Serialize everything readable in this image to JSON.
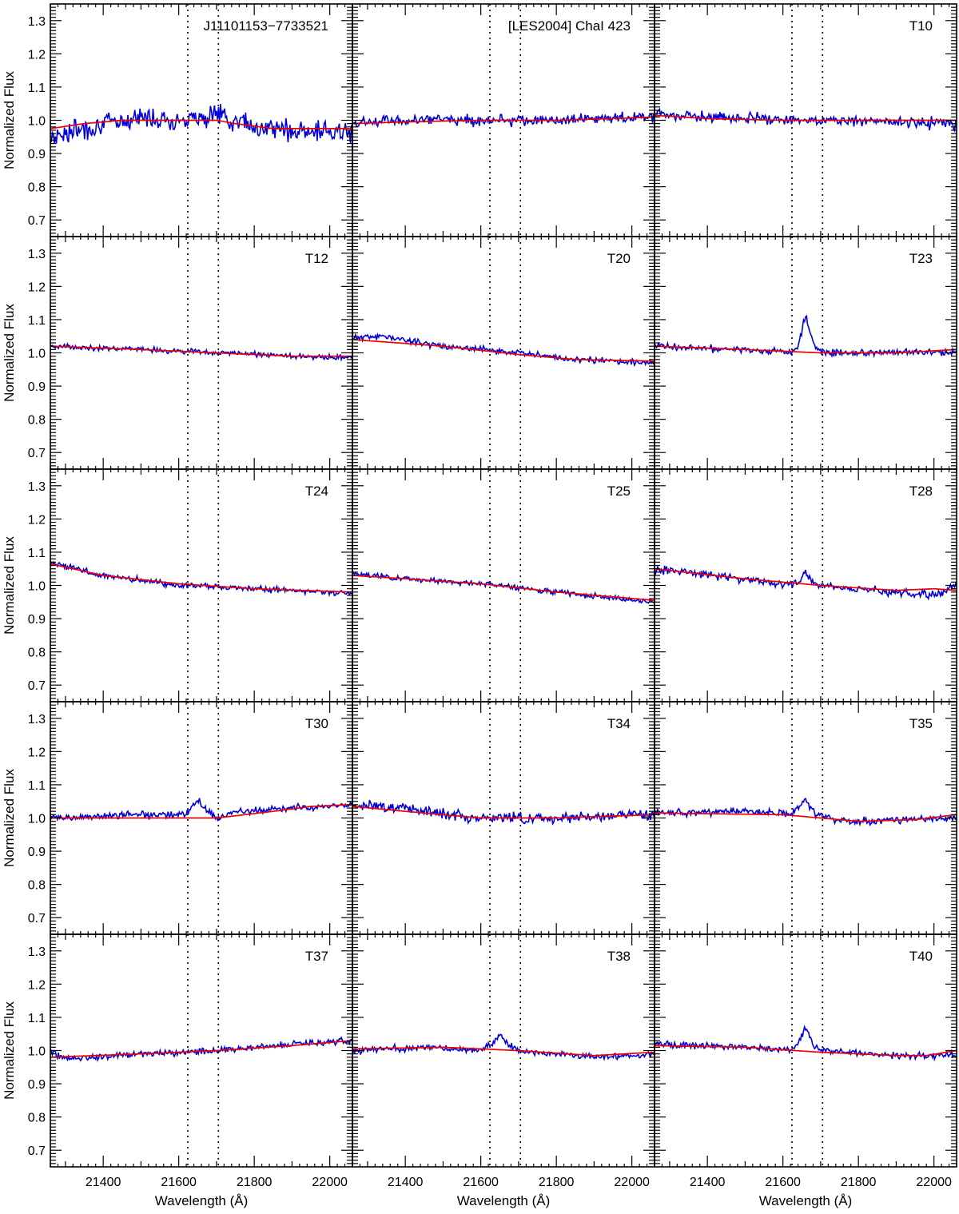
{
  "chart_data": {
    "type": "line",
    "layout": "grid 5 rows x 3 columns, shared axes",
    "xlabel": "Wavelength (Å)",
    "ylabel": "Normalized Flux",
    "xlim": [
      21260,
      22060
    ],
    "ylim": [
      0.65,
      1.35
    ],
    "xticks": [
      21400,
      21600,
      21800,
      22000
    ],
    "xtick_labels": [
      "21400",
      "21600",
      "21800",
      "22000"
    ],
    "yticks": [
      0.7,
      0.8,
      0.9,
      1.0,
      1.1,
      1.2,
      1.3
    ],
    "ytick_labels": [
      "0.7",
      "0.8",
      "0.9",
      "1.0",
      "1.1",
      "1.2",
      "1.3"
    ],
    "reference_lines_x": [
      21624,
      21705
    ],
    "grid": false,
    "colors": {
      "observed": "#0000dd",
      "model": "#ee0000",
      "axes": "#000000",
      "reference": "#000000"
    },
    "panels": [
      {
        "label": "J11101153−7733521",
        "observed_noise": 0.024,
        "observed": [
          [
            21260,
            0.95
          ],
          [
            21400,
            0.99
          ],
          [
            21500,
            1.01
          ],
          [
            21600,
            1.0
          ],
          [
            21700,
            1.02
          ],
          [
            21800,
            0.98
          ],
          [
            21900,
            0.97
          ],
          [
            22060,
            0.96
          ]
        ],
        "model": [
          [
            21260,
            0.975
          ],
          [
            21350,
            0.99
          ],
          [
            21450,
            1.0
          ],
          [
            21600,
            1.0
          ],
          [
            21700,
            1.0
          ],
          [
            21750,
            0.99
          ],
          [
            21850,
            0.975
          ],
          [
            22060,
            0.975
          ]
        ]
      },
      {
        "label": "[LES2004] ChaI 423",
        "observed_noise": 0.012,
        "observed": [
          [
            21260,
            0.99
          ],
          [
            21400,
            1.0
          ],
          [
            21600,
            1.0
          ],
          [
            21800,
            1.0
          ],
          [
            22060,
            1.01
          ]
        ],
        "model": [
          [
            21260,
            0.99
          ],
          [
            21400,
            0.995
          ],
          [
            21600,
            1.0
          ],
          [
            21800,
            1.0
          ],
          [
            21950,
            1.005
          ],
          [
            22060,
            1.01
          ]
        ]
      },
      {
        "label": "T10",
        "observed_noise": 0.013,
        "observed": [
          [
            21260,
            1.02
          ],
          [
            21400,
            1.01
          ],
          [
            21600,
            1.0
          ],
          [
            21800,
            1.0
          ],
          [
            22060,
            0.99
          ]
        ],
        "model": [
          [
            21260,
            1.015
          ],
          [
            21400,
            1.005
          ],
          [
            21600,
            1.0
          ],
          [
            21800,
            1.0
          ],
          [
            22060,
            1.0
          ]
        ]
      },
      {
        "label": "T12",
        "observed_noise": 0.006,
        "observed": [
          [
            21260,
            1.02
          ],
          [
            21500,
            1.01
          ],
          [
            21700,
            1.0
          ],
          [
            21900,
            0.99
          ],
          [
            22060,
            0.985
          ]
        ],
        "model": [
          [
            21260,
            1.02
          ],
          [
            21500,
            1.01
          ],
          [
            21700,
            1.0
          ],
          [
            21900,
            0.99
          ],
          [
            22060,
            0.99
          ]
        ]
      },
      {
        "label": "T20",
        "observed_noise": 0.007,
        "observed": [
          [
            21260,
            1.045
          ],
          [
            21340,
            1.05
          ],
          [
            21500,
            1.02
          ],
          [
            21700,
            1.0
          ],
          [
            21850,
            0.98
          ],
          [
            22060,
            0.97
          ]
        ],
        "model": [
          [
            21260,
            1.04
          ],
          [
            21500,
            1.02
          ],
          [
            21700,
            0.995
          ],
          [
            21850,
            0.98
          ],
          [
            22060,
            0.975
          ]
        ]
      },
      {
        "label": "T23",
        "observed_noise": 0.008,
        "observed": [
          [
            21260,
            1.02
          ],
          [
            21500,
            1.01
          ],
          [
            21620,
            1.0
          ],
          [
            21640,
            1.02
          ],
          [
            21660,
            1.11
          ],
          [
            21680,
            1.03
          ],
          [
            21700,
            1.0
          ],
          [
            21900,
            1.0
          ],
          [
            22060,
            1.0
          ]
        ],
        "model": [
          [
            21260,
            1.02
          ],
          [
            21500,
            1.01
          ],
          [
            21700,
            1.0
          ],
          [
            21900,
            1.0
          ],
          [
            22060,
            1.01
          ]
        ]
      },
      {
        "label": "T24",
        "observed_noise": 0.007,
        "observed": [
          [
            21260,
            1.07
          ],
          [
            21400,
            1.03
          ],
          [
            21600,
            1.0
          ],
          [
            21800,
            0.99
          ],
          [
            22060,
            0.975
          ]
        ],
        "model": [
          [
            21260,
            1.065
          ],
          [
            21400,
            1.03
          ],
          [
            21600,
            1.005
          ],
          [
            21800,
            0.99
          ],
          [
            22060,
            0.98
          ]
        ]
      },
      {
        "label": "T25",
        "observed_noise": 0.006,
        "observed": [
          [
            21260,
            1.035
          ],
          [
            21400,
            1.02
          ],
          [
            21600,
            1.005
          ],
          [
            21800,
            0.98
          ],
          [
            22060,
            0.95
          ]
        ],
        "model": [
          [
            21260,
            1.03
          ],
          [
            21400,
            1.02
          ],
          [
            21600,
            1.005
          ],
          [
            21800,
            0.98
          ],
          [
            22060,
            0.955
          ]
        ]
      },
      {
        "label": "T28",
        "observed_noise": 0.009,
        "observed": [
          [
            21260,
            1.05
          ],
          [
            21500,
            1.02
          ],
          [
            21620,
            1.0
          ],
          [
            21640,
            1.01
          ],
          [
            21660,
            1.04
          ],
          [
            21680,
            1.01
          ],
          [
            21700,
            1.0
          ],
          [
            21900,
            0.98
          ],
          [
            22000,
            0.97
          ],
          [
            22060,
            1.0
          ]
        ],
        "model": [
          [
            21260,
            1.05
          ],
          [
            21500,
            1.02
          ],
          [
            21700,
            1.0
          ],
          [
            21900,
            0.985
          ],
          [
            22000,
            0.99
          ],
          [
            22060,
            0.985
          ]
        ]
      },
      {
        "label": "T30",
        "observed_noise": 0.008,
        "observed": [
          [
            21260,
            1.0
          ],
          [
            21500,
            1.01
          ],
          [
            21620,
            1.01
          ],
          [
            21650,
            1.05
          ],
          [
            21680,
            1.02
          ],
          [
            21700,
            1.0
          ],
          [
            21760,
            1.02
          ],
          [
            21900,
            1.03
          ],
          [
            22060,
            1.04
          ]
        ],
        "model": [
          [
            21260,
            1.0
          ],
          [
            21600,
            1.0
          ],
          [
            21700,
            1.0
          ],
          [
            21850,
            1.02
          ],
          [
            21950,
            1.035
          ],
          [
            22060,
            1.04
          ]
        ]
      },
      {
        "label": "T34",
        "observed_noise": 0.012,
        "observed": [
          [
            21260,
            1.04
          ],
          [
            21400,
            1.03
          ],
          [
            21600,
            1.0
          ],
          [
            21800,
            1.0
          ],
          [
            22060,
            1.01
          ]
        ],
        "model": [
          [
            21260,
            1.035
          ],
          [
            21400,
            1.02
          ],
          [
            21600,
            1.0
          ],
          [
            21800,
            1.0
          ],
          [
            22060,
            1.01
          ]
        ]
      },
      {
        "label": "T35",
        "observed_noise": 0.008,
        "observed": [
          [
            21260,
            1.015
          ],
          [
            21500,
            1.02
          ],
          [
            21620,
            1.01
          ],
          [
            21640,
            1.03
          ],
          [
            21660,
            1.055
          ],
          [
            21680,
            1.02
          ],
          [
            21700,
            1.0
          ],
          [
            21800,
            0.99
          ],
          [
            22060,
            1.0
          ]
        ],
        "model": [
          [
            21260,
            1.015
          ],
          [
            21600,
            1.01
          ],
          [
            21700,
            1.0
          ],
          [
            21800,
            0.99
          ],
          [
            21950,
            0.995
          ],
          [
            22060,
            1.01
          ]
        ]
      },
      {
        "label": "T37",
        "observed_noise": 0.008,
        "observed": [
          [
            21260,
            1.0
          ],
          [
            21300,
            0.975
          ],
          [
            21500,
            0.99
          ],
          [
            21700,
            1.0
          ],
          [
            21900,
            1.02
          ],
          [
            22060,
            1.03
          ]
        ],
        "model": [
          [
            21260,
            0.98
          ],
          [
            21500,
            0.99
          ],
          [
            21700,
            1.0
          ],
          [
            21900,
            1.015
          ],
          [
            22060,
            1.03
          ]
        ]
      },
      {
        "label": "T38",
        "observed_noise": 0.007,
        "observed": [
          [
            21260,
            1.0
          ],
          [
            21450,
            1.01
          ],
          [
            21600,
            1.0
          ],
          [
            21630,
            1.02
          ],
          [
            21650,
            1.05
          ],
          [
            21670,
            1.02
          ],
          [
            21700,
            1.0
          ],
          [
            21900,
            0.98
          ],
          [
            22060,
            0.99
          ]
        ],
        "model": [
          [
            21260,
            1.005
          ],
          [
            21500,
            1.01
          ],
          [
            21700,
            1.0
          ],
          [
            21900,
            0.985
          ],
          [
            22060,
            0.995
          ]
        ]
      },
      {
        "label": "T40",
        "observed_noise": 0.007,
        "observed": [
          [
            21260,
            1.02
          ],
          [
            21500,
            1.01
          ],
          [
            21620,
            1.0
          ],
          [
            21640,
            1.02
          ],
          [
            21660,
            1.07
          ],
          [
            21680,
            1.02
          ],
          [
            21700,
            1.0
          ],
          [
            21900,
            0.985
          ],
          [
            22060,
            0.985
          ]
        ],
        "model": [
          [
            21260,
            1.015
          ],
          [
            21500,
            1.01
          ],
          [
            21700,
            0.995
          ],
          [
            21900,
            0.985
          ],
          [
            21980,
            0.985
          ],
          [
            22060,
            1.0
          ]
        ]
      }
    ]
  }
}
